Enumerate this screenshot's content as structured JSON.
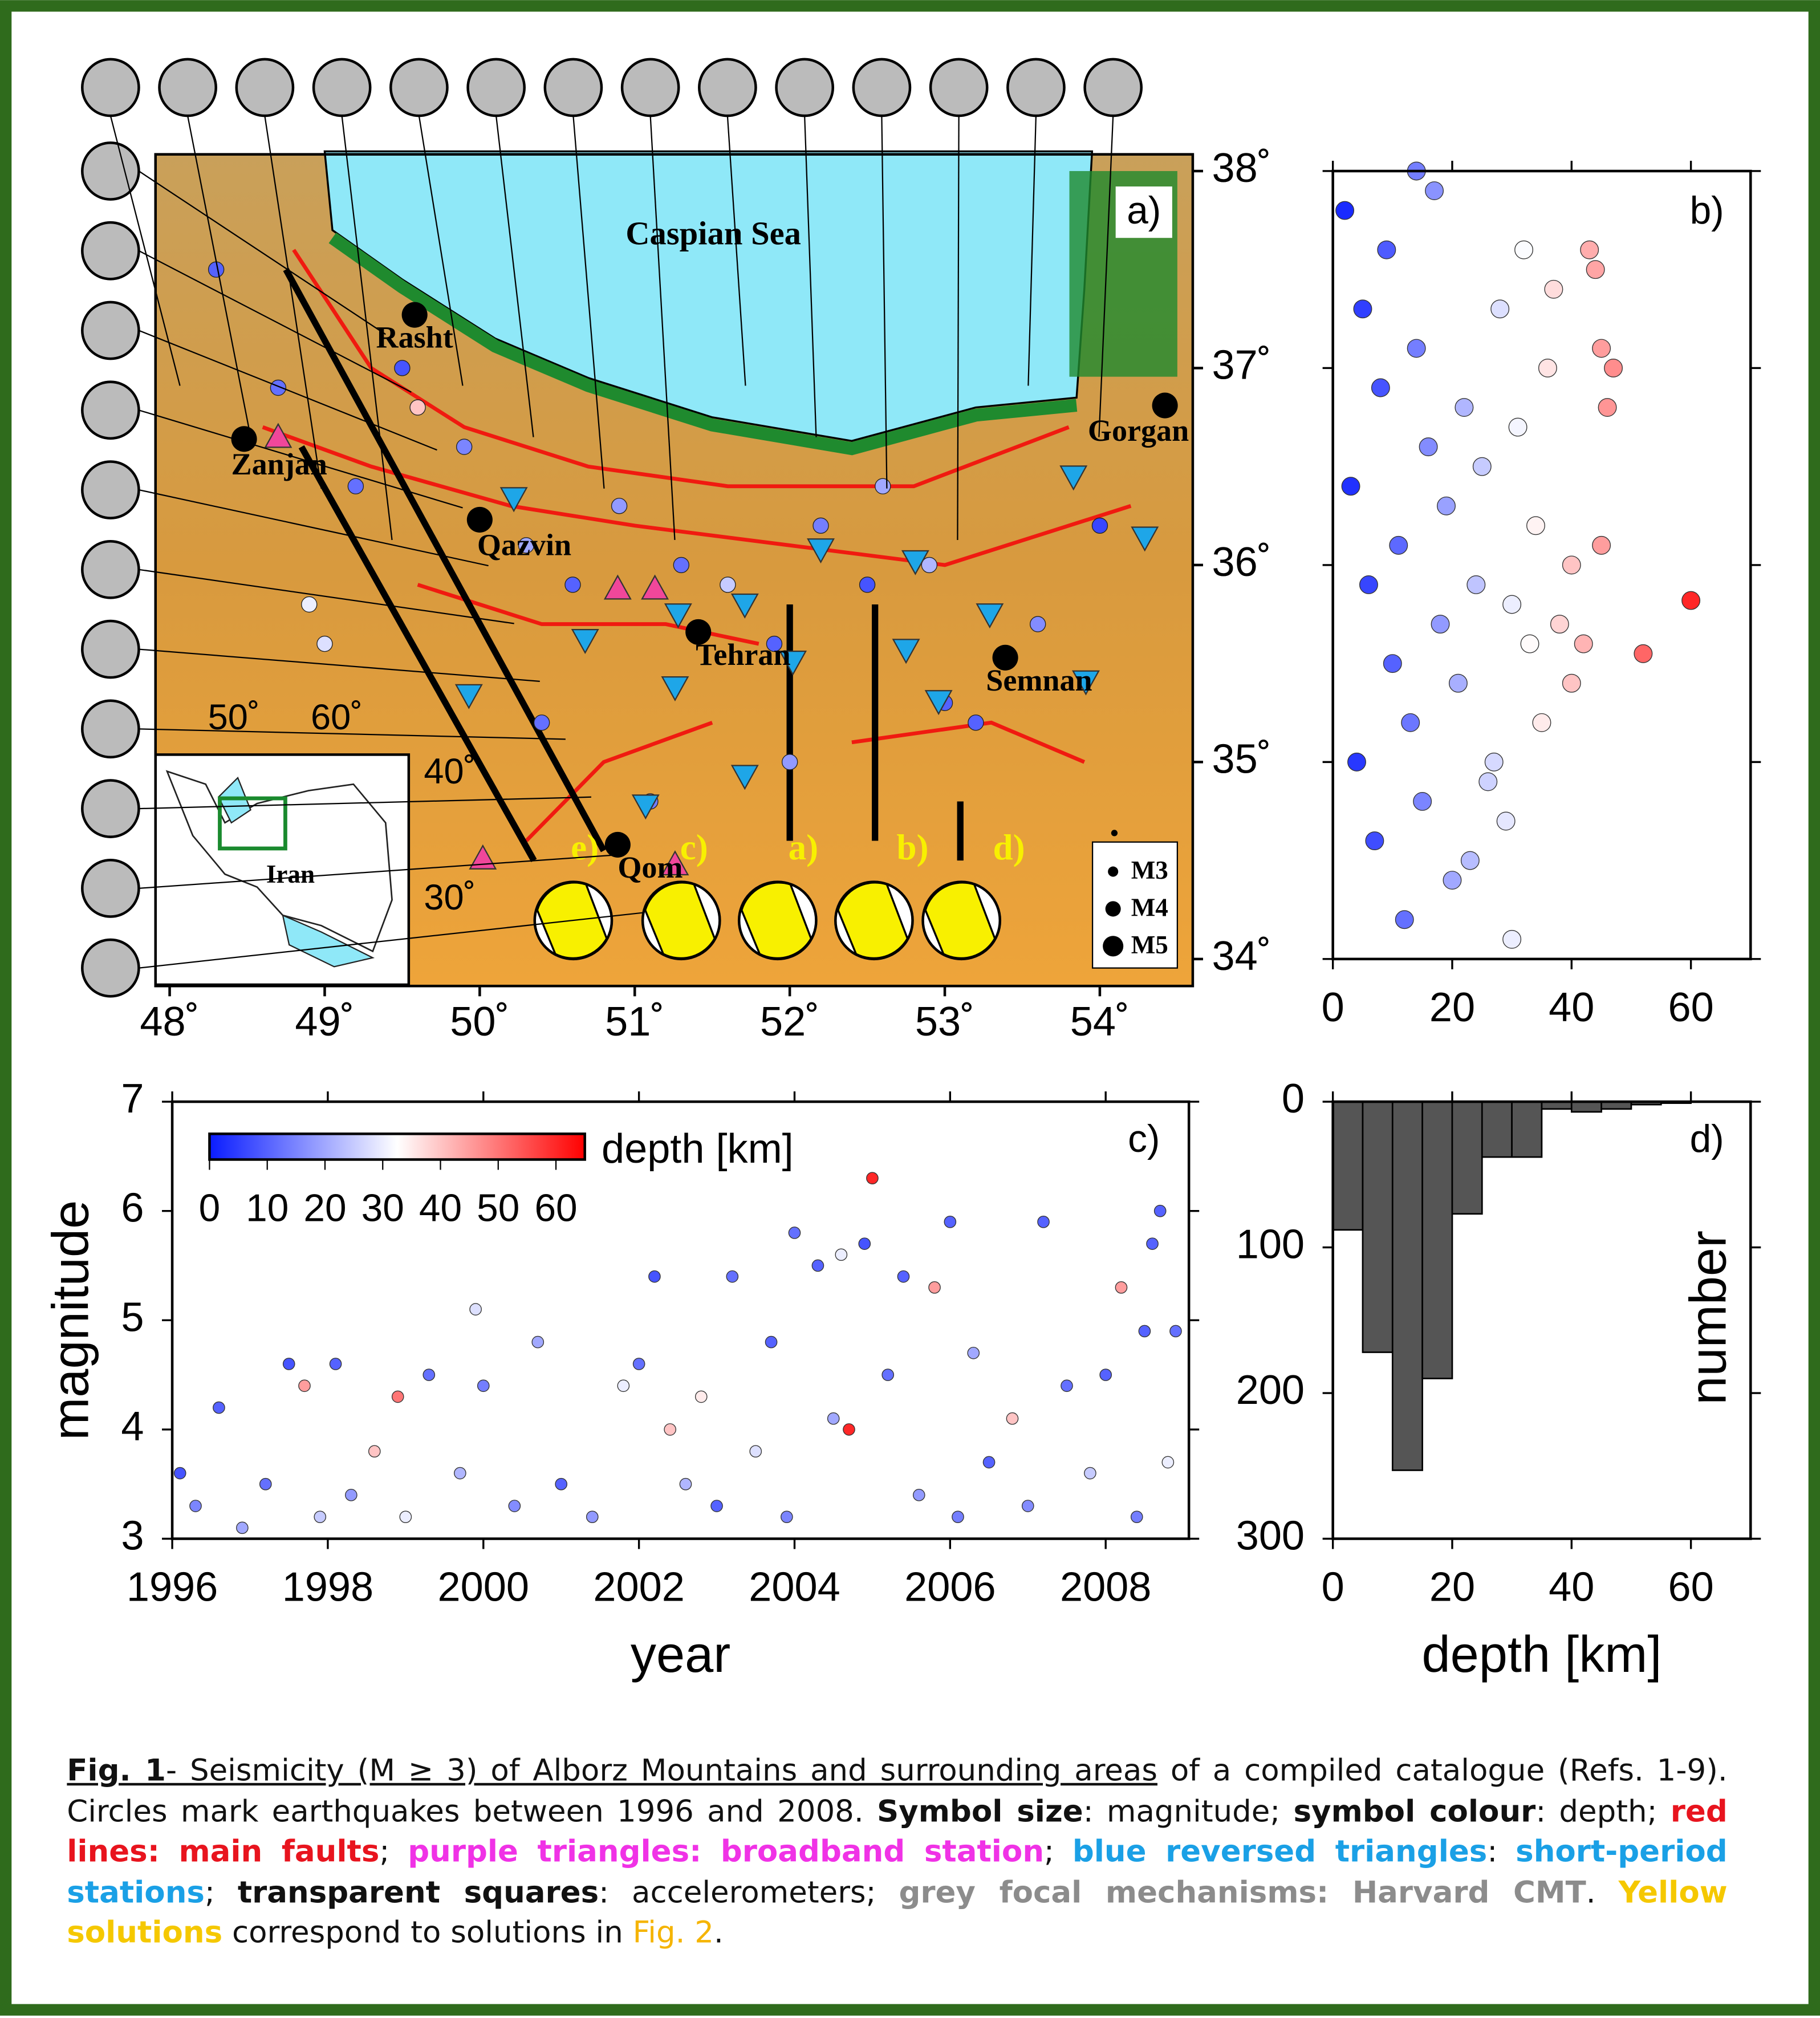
{
  "chart_data": [
    {
      "type": "map",
      "label": "a)",
      "xlim": [
        48,
        54.5
      ],
      "ylim": [
        34,
        38
      ],
      "xticks": [
        {
          "value": 48,
          "label": "48˚"
        },
        {
          "value": 49,
          "label": "49˚"
        },
        {
          "value": 50,
          "label": "50˚"
        },
        {
          "value": 51,
          "label": "51˚"
        },
        {
          "value": 52,
          "label": "52˚"
        },
        {
          "value": 53,
          "label": "53˚"
        },
        {
          "value": 54,
          "label": "54˚"
        }
      ],
      "yticks": [
        {
          "value": 34,
          "label": "34˚"
        },
        {
          "value": 35,
          "label": "35˚"
        },
        {
          "value": 36,
          "label": "36˚"
        },
        {
          "value": 37,
          "label": "37˚"
        },
        {
          "value": 38,
          "label": "38˚"
        }
      ],
      "sea_label": "Caspian Sea",
      "cities": {
        "names": [
          "Rasht",
          "Zanjan",
          "Qazvin",
          "Tehran",
          "Semnan",
          "Gorgan",
          "Qom"
        ],
        "x": [
          49.58,
          48.48,
          50.0,
          51.41,
          53.39,
          54.42,
          50.89
        ],
        "y": [
          37.27,
          36.64,
          36.23,
          35.66,
          35.53,
          36.81,
          34.58
        ]
      },
      "events": {
        "x": [
          48.3,
          48.9,
          49.2,
          49.5,
          49.9,
          50.3,
          50.6,
          50.9,
          51.3,
          51.6,
          51.9,
          52.2,
          52.5,
          52.9,
          53.2,
          53.6,
          54.0,
          49.0,
          50.4,
          51.1,
          52.0,
          53.0,
          48.7,
          49.6,
          52.6
        ],
        "y": [
          37.5,
          35.8,
          36.4,
          37.0,
          36.6,
          36.1,
          35.9,
          36.3,
          36.0,
          35.9,
          35.6,
          36.2,
          35.9,
          36.0,
          35.2,
          35.7,
          36.2,
          35.6,
          35.2,
          34.8,
          35.0,
          35.3,
          36.9,
          36.8,
          36.4
        ],
        "depth": [
          10,
          30,
          12,
          8,
          15,
          20,
          10,
          18,
          12,
          25,
          10,
          14,
          8,
          22,
          10,
          16,
          6,
          28,
          12,
          14,
          18,
          10,
          12,
          40,
          20
        ]
      },
      "broadband": {
        "x": [
          48.7,
          50.89,
          51.13,
          50.02,
          51.26
        ],
        "y": [
          36.65,
          35.88,
          35.88,
          34.51,
          34.48
        ]
      },
      "short_period": {
        "x": [
          50.22,
          50.68,
          51.28,
          51.71,
          52.2,
          52.81,
          53.29,
          53.83,
          54.29,
          53.91,
          52.96,
          52.75,
          52.02,
          51.26,
          49.93,
          51.71,
          51.07
        ],
        "y": [
          36.34,
          35.62,
          35.75,
          35.8,
          36.08,
          36.02,
          35.75,
          36.45,
          36.14,
          35.41,
          35.31,
          35.57,
          35.51,
          35.38,
          35.34,
          34.93,
          34.78
        ]
      },
      "solutions": [
        "e)",
        "c)",
        "a)",
        "b)",
        "d)"
      ],
      "legend": [
        "M3",
        "M4",
        "M5"
      ],
      "inset": {
        "name": "Iran",
        "lon_labels": [
          "50˚",
          "60˚"
        ],
        "lat_labels": [
          "40˚",
          "30˚"
        ]
      }
    },
    {
      "type": "scatter",
      "label": "b)",
      "xlim": [
        0,
        70
      ],
      "ylim": [
        34,
        38
      ],
      "xticks": [
        0,
        20,
        40,
        60
      ],
      "x": [
        2,
        5,
        8,
        3,
        6,
        10,
        4,
        7,
        12,
        9,
        14,
        16,
        11,
        18,
        13,
        15,
        20,
        17,
        22,
        19,
        24,
        21,
        26,
        23,
        28,
        25,
        30,
        27,
        32,
        31,
        33,
        29,
        34,
        36,
        38,
        35,
        40,
        37,
        43,
        44,
        45,
        47,
        46,
        45,
        42,
        40,
        52,
        60,
        30,
        14
      ],
      "values": [
        37.8,
        37.3,
        36.9,
        36.4,
        35.9,
        35.5,
        35.0,
        34.6,
        34.2,
        37.6,
        37.1,
        36.6,
        36.1,
        35.7,
        35.2,
        34.8,
        34.4,
        37.9,
        36.8,
        36.3,
        35.9,
        35.4,
        34.9,
        34.5,
        37.3,
        36.5,
        35.8,
        35.0,
        37.6,
        36.7,
        35.6,
        34.7,
        36.2,
        37.0,
        35.7,
        35.2,
        36.0,
        37.4,
        37.6,
        37.5,
        37.1,
        37.0,
        36.8,
        36.1,
        35.6,
        35.4,
        35.55,
        35.82,
        34.1,
        38.0
      ]
    },
    {
      "type": "scatter",
      "label": "c)",
      "xlabel": "year",
      "ylabel": "magnitude",
      "xlim": [
        1996,
        2009.07
      ],
      "ylim": [
        3,
        7
      ],
      "xticks": [
        1996,
        1998,
        2000,
        2002,
        2004,
        2006,
        2008
      ],
      "yticks": [
        3,
        4,
        5,
        6,
        7
      ],
      "x": [
        1996.1,
        1996.3,
        1996.6,
        1996.9,
        1997.2,
        1997.5,
        1997.7,
        1997.9,
        1998.1,
        1998.3,
        1998.6,
        1998.9,
        1999.0,
        1999.3,
        1999.7,
        1999.9,
        2000.0,
        2000.4,
        2000.7,
        2001.0,
        2001.4,
        2001.8,
        2002.0,
        2002.2,
        2002.4,
        2002.6,
        2002.8,
        2003.0,
        2003.2,
        2003.5,
        2003.7,
        2003.9,
        2004.0,
        2004.3,
        2004.5,
        2004.6,
        2004.7,
        2004.9,
        2005.0,
        2005.2,
        2005.4,
        2005.6,
        2005.8,
        2006.0,
        2006.1,
        2006.3,
        2006.5,
        2006.8,
        2007.0,
        2007.2,
        2007.5,
        2007.8,
        2008.0,
        2008.2,
        2008.4,
        2008.5,
        2008.6,
        2008.7,
        2008.8,
        2008.9
      ],
      "values": [
        3.6,
        3.3,
        4.2,
        3.1,
        3.5,
        4.6,
        4.4,
        3.2,
        4.6,
        3.4,
        3.8,
        4.3,
        3.2,
        4.5,
        3.6,
        5.1,
        4.4,
        3.3,
        4.8,
        3.5,
        3.2,
        4.4,
        4.6,
        5.4,
        4.0,
        3.5,
        4.3,
        3.3,
        5.4,
        3.8,
        4.8,
        3.2,
        5.8,
        5.5,
        4.1,
        5.6,
        4.0,
        5.7,
        6.3,
        4.5,
        5.4,
        3.4,
        5.3,
        5.9,
        3.2,
        4.7,
        3.7,
        4.1,
        3.3,
        5.9,
        4.4,
        3.6,
        4.5,
        5.3,
        3.2,
        4.9,
        5.7,
        6.0,
        3.7,
        4.9
      ],
      "depth": [
        8,
        15,
        10,
        20,
        12,
        8,
        45,
        25,
        10,
        18,
        40,
        50,
        30,
        12,
        22,
        28,
        14,
        16,
        20,
        10,
        18,
        30,
        12,
        8,
        40,
        22,
        35,
        10,
        12,
        28,
        10,
        15,
        12,
        10,
        20,
        30,
        60,
        8,
        60,
        12,
        10,
        18,
        45,
        10,
        14,
        20,
        10,
        40,
        16,
        10,
        12,
        25,
        10,
        45,
        14,
        10,
        10,
        10,
        30,
        12
      ],
      "colorbar": {
        "label": "depth [km]",
        "lim": [
          0,
          65
        ],
        "ticks": [
          0,
          10,
          20,
          30,
          40,
          50,
          60
        ],
        "colors": [
          "#0a1cff",
          "#ffffff",
          "#ff0000"
        ]
      }
    },
    {
      "type": "histogram",
      "label": "d)",
      "xlabel": "depth [km]",
      "ylabel": "number",
      "xlim": [
        0,
        70
      ],
      "ylim": [
        0,
        300
      ],
      "y_inverted": true,
      "color": "#555555",
      "xticks": [
        0,
        20,
        40,
        60
      ],
      "yticks": [
        0,
        100,
        200,
        300
      ],
      "bins": [
        0,
        5,
        10,
        15,
        20,
        25,
        30,
        35,
        40,
        45,
        50,
        55,
        60
      ],
      "values": [
        88,
        172,
        253,
        190,
        77,
        38,
        38,
        5,
        7,
        5,
        2,
        1
      ]
    }
  ],
  "caption": {
    "runs": [
      {
        "text": "Fig. 1",
        "bold": true,
        "underline": true
      },
      {
        "text": "- Seismicity (M ≥ 3) of Alborz Mountains and surrounding areas",
        "underline": true
      },
      {
        "text": " of a compiled catalogue (Refs. 1-9). Circles mark earthquakes between 1996 and 2008. "
      },
      {
        "text": "Symbol size",
        "bold": true
      },
      {
        "text": ": magnitude; "
      },
      {
        "text": "symbol colour",
        "bold": true
      },
      {
        "text": ": depth; "
      },
      {
        "text": "red lines: main faults",
        "bold": true,
        "color": "#e8141e"
      },
      {
        "text": "; "
      },
      {
        "text": "purple triangles: broadband station",
        "bold": true,
        "color": "#f032e6"
      },
      {
        "text": "; "
      },
      {
        "text": "blue reversed triangles",
        "bold": true,
        "color": "#1aa0e6"
      },
      {
        "text": ": "
      },
      {
        "text": "short-period stations",
        "bold": true,
        "color": "#1aa0e6"
      },
      {
        "text": "; "
      },
      {
        "text": "transparent squares",
        "bold": true
      },
      {
        "text": ": accelerometers; "
      },
      {
        "text": "grey focal mechanisms: Harvard CMT",
        "bold": true,
        "color": "#8c8c8c"
      },
      {
        "text": ". "
      },
      {
        "text": "Yellow solutions",
        "bold": true,
        "color": "#f5c800"
      },
      {
        "text": " correspond to solutions in "
      },
      {
        "text": "Fig. 2",
        "color": "#f5b400"
      },
      {
        "text": "."
      }
    ]
  }
}
